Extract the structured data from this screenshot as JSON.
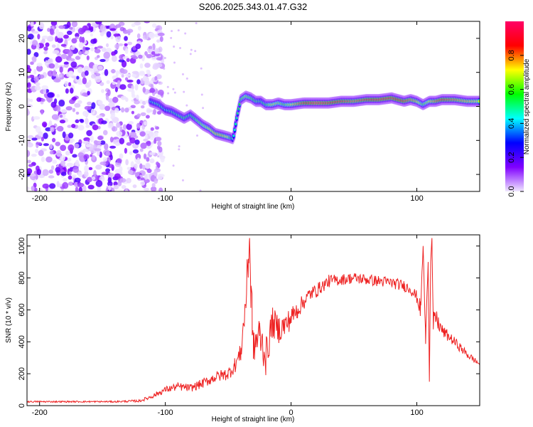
{
  "title": "S206.2025.343.01.47.G32",
  "chart_data": [
    {
      "type": "heatmap",
      "xlabel": "Height of straight line (km)",
      "ylabel": "Frequency (Hz)",
      "xlim": [
        -210,
        150
      ],
      "ylim": [
        -25,
        25
      ],
      "x_ticks": [
        -200,
        -100,
        0,
        100
      ],
      "x_tick_labels": [
        "-200",
        "-100",
        "0",
        "100"
      ],
      "y_ticks": [
        20,
        10,
        0,
        -10,
        -20
      ],
      "y_tick_labels": [
        "20",
        "10",
        "0",
        "-10",
        "-20"
      ],
      "colorbar": {
        "label": "Normalized spectral amplitude",
        "range": [
          0,
          1
        ],
        "ticks": [
          0.0,
          0.2,
          0.4,
          0.6,
          0.8
        ],
        "tick_labels": [
          "0.0",
          "0.2",
          "0.4",
          "0.6",
          "0.8"
        ],
        "colors": [
          "#f0e8ff",
          "#8000ff",
          "#0000ff",
          "#00ffff",
          "#00ff00",
          "#ffff00",
          "#ff0000",
          "#ff0066"
        ]
      },
      "noise_region": {
        "x_from": -210,
        "x_to": -110,
        "y_from": -25,
        "y_to": 25
      },
      "ridge": {
        "x": [
          -112,
          -105,
          -100,
          -95,
          -90,
          -85,
          -80,
          -75,
          -70,
          -65,
          -60,
          -55,
          -50,
          -46,
          -43,
          -40,
          -36,
          -32,
          -28,
          -24,
          -20,
          -15,
          -10,
          -5,
          0,
          10,
          20,
          30,
          40,
          50,
          60,
          70,
          80,
          90,
          95,
          100,
          105,
          110,
          115,
          120,
          130,
          140,
          150
        ],
        "y": [
          1.5,
          0.5,
          -1,
          -1.5,
          -2.5,
          -3.5,
          -2.5,
          -4,
          -5.5,
          -6.5,
          -8,
          -8.5,
          -9,
          -9.5,
          -3,
          2,
          3,
          2.5,
          1.5,
          1.5,
          0.5,
          0.5,
          1,
          0.5,
          0.5,
          1,
          1,
          1,
          1.5,
          1.5,
          2,
          2,
          2.5,
          1.5,
          2,
          1.5,
          0.5,
          1.5,
          1.5,
          2,
          2,
          1.5,
          1.5
        ],
        "amplitude": [
          0.45,
          0.5,
          0.45,
          0.5,
          0.5,
          0.55,
          0.5,
          0.6,
          0.65,
          0.7,
          0.75,
          0.75,
          0.7,
          0.45,
          0.5,
          0.6,
          0.65,
          0.6,
          0.55,
          0.5,
          0.55,
          0.7,
          0.65,
          0.6,
          0.7,
          0.85,
          0.95,
          0.9,
          0.85,
          0.8,
          0.85,
          0.9,
          0.9,
          0.85,
          0.8,
          0.75,
          0.6,
          0.7,
          0.8,
          0.85,
          0.8,
          0.75,
          0.7
        ]
      }
    },
    {
      "type": "line",
      "xlabel": "Height of straight line (km)",
      "ylabel": "SNR (10 * v/v)",
      "xlim": [
        -210,
        150
      ],
      "ylim": [
        0,
        1070
      ],
      "x_ticks": [
        -200,
        -100,
        0,
        100
      ],
      "x_tick_labels": [
        "-200",
        "-100",
        "0",
        "100"
      ],
      "y_ticks": [
        0,
        200,
        400,
        600,
        800,
        1000
      ],
      "y_tick_labels": [
        "0",
        "200",
        "400",
        "600",
        "800",
        "1000"
      ],
      "color": "#ee2222",
      "x": [
        -210,
        -200,
        -180,
        -160,
        -140,
        -120,
        -110,
        -100,
        -90,
        -80,
        -70,
        -60,
        -50,
        -45,
        -40,
        -36,
        -34,
        -33,
        -32,
        -31,
        -30,
        -28,
        -25,
        -20,
        -15,
        -10,
        -5,
        0,
        5,
        10,
        15,
        20,
        25,
        30,
        40,
        50,
        60,
        70,
        80,
        90,
        95,
        100,
        103,
        105,
        107,
        109,
        110,
        111,
        112,
        113,
        115,
        120,
        130,
        140,
        150
      ],
      "y": [
        25,
        25,
        25,
        25,
        25,
        30,
        60,
        100,
        120,
        110,
        140,
        180,
        200,
        250,
        330,
        650,
        900,
        1050,
        700,
        600,
        350,
        400,
        450,
        300,
        520,
        480,
        500,
        550,
        600,
        650,
        700,
        720,
        750,
        780,
        790,
        800,
        790,
        780,
        770,
        750,
        730,
        680,
        600,
        1000,
        400,
        900,
        150,
        900,
        1050,
        500,
        550,
        470,
        400,
        320,
        260
      ],
      "jitter": [
        5,
        5,
        5,
        5,
        5,
        8,
        15,
        20,
        25,
        25,
        30,
        35,
        40,
        50,
        60,
        120,
        150,
        0,
        150,
        150,
        100,
        120,
        120,
        120,
        100,
        90,
        80,
        70,
        60,
        50,
        45,
        45,
        40,
        40,
        35,
        35,
        35,
        35,
        35,
        35,
        35,
        40,
        60,
        0,
        80,
        0,
        0,
        0,
        0,
        80,
        60,
        40,
        30,
        25,
        15
      ]
    }
  ]
}
